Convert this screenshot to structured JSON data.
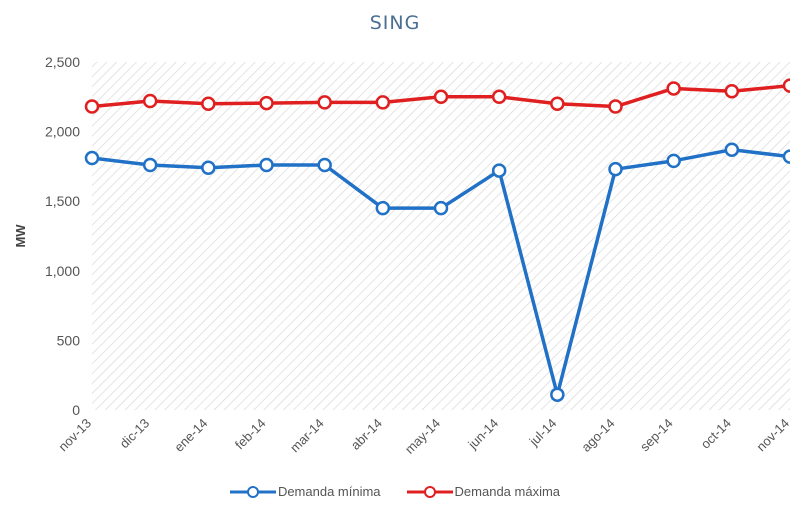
{
  "chart_data": {
    "type": "line",
    "title": "SING",
    "xlabel": "",
    "ylabel": "MW",
    "ylim": [
      0,
      2500
    ],
    "yticks": [
      0,
      500,
      1000,
      1500,
      2000,
      2500
    ],
    "ytick_labels": [
      "0",
      "500",
      "1,000",
      "1,500",
      "2,000",
      "2,500"
    ],
    "categories": [
      "nov-13",
      "dic-13",
      "ene-14",
      "feb-14",
      "mar-14",
      "abr-14",
      "may-14",
      "jun-14",
      "jul-14",
      "ago-14",
      "sep-14",
      "oct-14",
      "nov-14"
    ],
    "series": [
      {
        "name": "Demanda mínima",
        "color": "#2171c7",
        "values": [
          1810,
          1760,
          1740,
          1760,
          1760,
          1450,
          1450,
          1720,
          110,
          1730,
          1790,
          1870,
          1820
        ]
      },
      {
        "name": "Demanda máxima",
        "color": "#e02020",
        "values": [
          2180,
          2220,
          2200,
          2205,
          2210,
          2210,
          2250,
          2250,
          2200,
          2180,
          2310,
          2290,
          2330
        ]
      }
    ],
    "grid": false,
    "background": "diagonal hatch",
    "legend": "bottom-center"
  }
}
